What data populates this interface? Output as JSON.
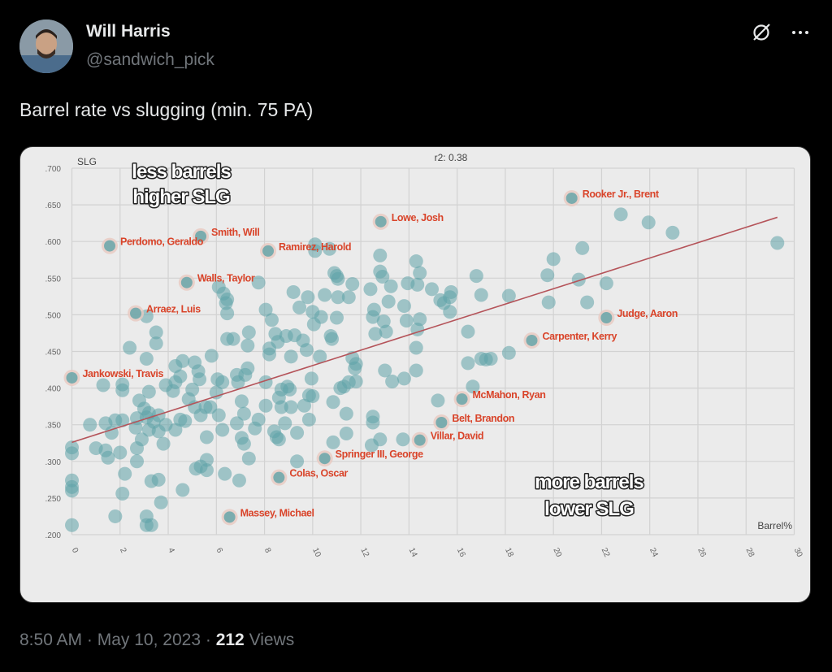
{
  "tweet": {
    "author_name": "Will Harris",
    "handle": "@sandwich_pick",
    "text": "Barrel rate vs slugging (min. 75 PA)",
    "time": "8:50 AM",
    "date": "May 10, 2023",
    "views_count": "212",
    "views_label": "Views",
    "separator": "·",
    "icons": [
      "grok-icon",
      "more-icon"
    ]
  },
  "chart_data": {
    "type": "scatter",
    "xlabel": "Barrel%",
    "ylabel": "SLG",
    "annotation_top": "r2: 0.38",
    "xlim": [
      0,
      30
    ],
    "ylim": [
      0.2,
      0.7
    ],
    "x_ticks": [
      "0",
      "2",
      "4",
      "6",
      "8",
      "10",
      "12",
      "14",
      "16",
      "18",
      "20",
      "22",
      "24",
      "26",
      "28",
      "30"
    ],
    "y_ticks": [
      ".700",
      ".650",
      ".600",
      ".550",
      ".500",
      ".450",
      ".400",
      ".350",
      ".300",
      ".250",
      ".200"
    ],
    "grid": true,
    "point_color": "#5fa3a8",
    "label_color": "#d9442a",
    "trendline": {
      "color": "#b5545a",
      "x": [
        0,
        29.3
      ],
      "y": [
        0.326,
        0.633
      ]
    },
    "callouts": [
      {
        "lines": [
          "less barrels",
          "higher SLG"
        ],
        "position": "top-left"
      },
      {
        "lines": [
          "more barrels",
          "lower SLG"
        ],
        "position": "bottom-center"
      }
    ],
    "labeled_points": [
      {
        "name": "Rooker Jr., Brent",
        "x": 20.76,
        "y": 0.659
      },
      {
        "name": "Lowe, Josh",
        "x": 12.83,
        "y": 0.627
      },
      {
        "name": "Smith, Will",
        "x": 5.35,
        "y": 0.607
      },
      {
        "name": "Perdomo, Geraldo",
        "x": 1.57,
        "y": 0.594
      },
      {
        "name": "Ramirez, Harold",
        "x": 8.15,
        "y": 0.587
      },
      {
        "name": "Walls, Taylor",
        "x": 4.77,
        "y": 0.544
      },
      {
        "name": "Arraez, Luis",
        "x": 2.65,
        "y": 0.502
      },
      {
        "name": "Jankowski, Travis",
        "x": 0.0,
        "y": 0.414
      },
      {
        "name": "Judge, Aaron",
        "x": 22.2,
        "y": 0.496
      },
      {
        "name": "Carpenter, Kerry",
        "x": 19.1,
        "y": 0.465
      },
      {
        "name": "McMahon, Ryan",
        "x": 16.2,
        "y": 0.385
      },
      {
        "name": "Belt, Brandon",
        "x": 15.35,
        "y": 0.353
      },
      {
        "name": "Villar, David",
        "x": 14.45,
        "y": 0.329
      },
      {
        "name": "Springer III, George",
        "x": 10.5,
        "y": 0.304
      },
      {
        "name": "Colas, Oscar",
        "x": 8.6,
        "y": 0.278
      },
      {
        "name": "Massey, Michael",
        "x": 6.55,
        "y": 0.224
      }
    ],
    "points": [
      [
        0,
        0.319
      ],
      [
        0,
        0.311
      ],
      [
        0,
        0.274
      ],
      [
        0,
        0.265
      ],
      [
        0,
        0.26
      ],
      [
        0,
        0.213
      ],
      [
        0.75,
        0.35
      ],
      [
        1,
        0.318
      ],
      [
        1.4,
        0.315
      ],
      [
        1.5,
        0.305
      ],
      [
        1.4,
        0.352
      ],
      [
        1.65,
        0.339
      ],
      [
        1.8,
        0.225
      ],
      [
        1.3,
        0.404
      ],
      [
        2,
        0.312
      ],
      [
        2.1,
        0.356
      ],
      [
        1.8,
        0.356
      ],
      [
        2.1,
        0.405
      ],
      [
        2.1,
        0.397
      ],
      [
        2.1,
        0.256
      ],
      [
        2.2,
        0.283
      ],
      [
        2.4,
        0.455
      ],
      [
        2.7,
        0.359
      ],
      [
        2.65,
        0.346
      ],
      [
        2.8,
        0.383
      ],
      [
        2.7,
        0.318
      ],
      [
        2.7,
        0.3
      ],
      [
        2.9,
        0.33
      ],
      [
        3.1,
        0.36
      ],
      [
        3.2,
        0.366
      ],
      [
        3.2,
        0.343
      ],
      [
        3.0,
        0.372
      ],
      [
        3.2,
        0.395
      ],
      [
        3.1,
        0.498
      ],
      [
        3.1,
        0.44
      ],
      [
        3.3,
        0.273
      ],
      [
        3.1,
        0.225
      ],
      [
        3.1,
        0.213
      ],
      [
        3.3,
        0.213
      ],
      [
        3.5,
        0.461
      ],
      [
        3.5,
        0.476
      ],
      [
        3.6,
        0.341
      ],
      [
        3.4,
        0.354
      ],
      [
        3.6,
        0.363
      ],
      [
        3.8,
        0.324
      ],
      [
        3.9,
        0.35
      ],
      [
        3.6,
        0.275
      ],
      [
        3.7,
        0.244
      ],
      [
        3.9,
        0.404
      ],
      [
        4.2,
        0.396
      ],
      [
        4.3,
        0.43
      ],
      [
        4.5,
        0.416
      ],
      [
        4.3,
        0.408
      ],
      [
        4.6,
        0.437
      ],
      [
        4.6,
        0.261
      ],
      [
        4.3,
        0.343
      ],
      [
        4.5,
        0.357
      ],
      [
        4.85,
        0.385
      ],
      [
        4.7,
        0.355
      ],
      [
        5,
        0.398
      ],
      [
        5.1,
        0.374
      ],
      [
        5.1,
        0.435
      ],
      [
        5.25,
        0.423
      ],
      [
        5.3,
        0.412
      ],
      [
        5.35,
        0.363
      ],
      [
        5.15,
        0.29
      ],
      [
        5.35,
        0.293
      ],
      [
        5.6,
        0.333
      ],
      [
        5.6,
        0.302
      ],
      [
        5.55,
        0.374
      ],
      [
        5.6,
        0.288
      ],
      [
        5.75,
        0.374
      ],
      [
        5.8,
        0.444
      ],
      [
        6,
        0.394
      ],
      [
        6.1,
        0.538
      ],
      [
        6.3,
        0.529
      ],
      [
        6.4,
        0.516
      ],
      [
        6.45,
        0.521
      ],
      [
        6.45,
        0.502
      ],
      [
        6.05,
        0.412
      ],
      [
        6.25,
        0.408
      ],
      [
        6.1,
        0.363
      ],
      [
        6.25,
        0.343
      ],
      [
        6.35,
        0.283
      ],
      [
        6.45,
        0.467
      ],
      [
        6.7,
        0.467
      ],
      [
        6.85,
        0.418
      ],
      [
        6.9,
        0.408
      ],
      [
        7.05,
        0.382
      ],
      [
        6.85,
        0.352
      ],
      [
        7.05,
        0.332
      ],
      [
        7.15,
        0.324
      ],
      [
        6.95,
        0.274
      ],
      [
        7.2,
        0.418
      ],
      [
        7.3,
        0.427
      ],
      [
        7.35,
        0.476
      ],
      [
        7.3,
        0.458
      ],
      [
        7.15,
        0.365
      ],
      [
        7.35,
        0.304
      ],
      [
        7.6,
        0.345
      ],
      [
        7.75,
        0.544
      ],
      [
        7.75,
        0.357
      ],
      [
        8.05,
        0.376
      ],
      [
        8.05,
        0.408
      ],
      [
        8.05,
        0.507
      ],
      [
        8.2,
        0.454
      ],
      [
        8.2,
        0.446
      ],
      [
        8.3,
        0.493
      ],
      [
        8.45,
        0.474
      ],
      [
        8.55,
        0.463
      ],
      [
        8.7,
        0.398
      ],
      [
        8.6,
        0.387
      ],
      [
        8.7,
        0.374
      ],
      [
        8.6,
        0.33
      ],
      [
        8.5,
        0.333
      ],
      [
        8.4,
        0.341
      ],
      [
        8.85,
        0.352
      ],
      [
        9.1,
        0.374
      ],
      [
        8.95,
        0.402
      ],
      [
        9.05,
        0.398
      ],
      [
        8.9,
        0.471
      ],
      [
        9.1,
        0.443
      ],
      [
        9.2,
        0.531
      ],
      [
        9.25,
        0.472
      ],
      [
        9.45,
        0.51
      ],
      [
        9.35,
        0.339
      ],
      [
        9.35,
        0.3
      ],
      [
        9.6,
        0.465
      ],
      [
        9.75,
        0.452
      ],
      [
        9.65,
        0.376
      ],
      [
        9.8,
        0.524
      ],
      [
        9.85,
        0.39
      ],
      [
        10,
        0.389
      ],
      [
        9.85,
        0.357
      ],
      [
        9.95,
        0.413
      ],
      [
        10,
        0.504
      ],
      [
        10.05,
        0.487
      ],
      [
        10.1,
        0.596
      ],
      [
        10.1,
        0.587
      ],
      [
        10.3,
        0.443
      ],
      [
        10.35,
        0.497
      ],
      [
        10.5,
        0.527
      ],
      [
        10.7,
        0.59
      ],
      [
        10.75,
        0.471
      ],
      [
        10.8,
        0.467
      ],
      [
        10.85,
        0.381
      ],
      [
        10.85,
        0.326
      ],
      [
        10.9,
        0.557
      ],
      [
        11,
        0.553
      ],
      [
        11.05,
        0.549
      ],
      [
        11.05,
        0.524
      ],
      [
        11,
        0.496
      ],
      [
        11.15,
        0.4
      ],
      [
        11.3,
        0.402
      ],
      [
        11.4,
        0.365
      ],
      [
        11.4,
        0.338
      ],
      [
        11.5,
        0.408
      ],
      [
        11.65,
        0.542
      ],
      [
        11.5,
        0.524
      ],
      [
        11.65,
        0.441
      ],
      [
        11.8,
        0.433
      ],
      [
        11.8,
        0.409
      ],
      [
        11.75,
        0.427
      ],
      [
        12.5,
        0.361
      ],
      [
        12.45,
        0.322
      ],
      [
        12.5,
        0.353
      ],
      [
        12.4,
        0.535
      ],
      [
        12.55,
        0.507
      ],
      [
        12.5,
        0.497
      ],
      [
        12.6,
        0.474
      ],
      [
        12.8,
        0.33
      ],
      [
        12.8,
        0.581
      ],
      [
        12.8,
        0.559
      ],
      [
        12.9,
        0.552
      ],
      [
        12.95,
        0.491
      ],
      [
        13.05,
        0.477
      ],
      [
        13,
        0.424
      ],
      [
        13.3,
        0.409
      ],
      [
        13.15,
        0.518
      ],
      [
        13.25,
        0.539
      ],
      [
        13.75,
        0.33
      ],
      [
        13.8,
        0.413
      ],
      [
        13.8,
        0.512
      ],
      [
        13.9,
        0.492
      ],
      [
        13.95,
        0.543
      ],
      [
        14.3,
        0.573
      ],
      [
        14.45,
        0.557
      ],
      [
        14.35,
        0.541
      ],
      [
        14.35,
        0.48
      ],
      [
        14.3,
        0.455
      ],
      [
        14.3,
        0.424
      ],
      [
        14.45,
        0.494
      ],
      [
        14.95,
        0.535
      ],
      [
        15.3,
        0.52
      ],
      [
        15.45,
        0.516
      ],
      [
        15.7,
        0.524
      ],
      [
        15.75,
        0.531
      ],
      [
        15.2,
        0.383
      ],
      [
        15.7,
        0.504
      ],
      [
        16.45,
        0.477
      ],
      [
        16.45,
        0.434
      ],
      [
        16.65,
        0.402
      ],
      [
        16.8,
        0.553
      ],
      [
        17,
        0.527
      ],
      [
        17,
        0.44
      ],
      [
        17.2,
        0.439
      ],
      [
        17.4,
        0.44
      ],
      [
        18.15,
        0.526
      ],
      [
        18.15,
        0.448
      ],
      [
        19.8,
        0.517
      ],
      [
        19.75,
        0.554
      ],
      [
        20,
        0.576
      ],
      [
        21.05,
        0.548
      ],
      [
        21.2,
        0.591
      ],
      [
        21.4,
        0.517
      ],
      [
        22.2,
        0.543
      ],
      [
        22.8,
        0.637
      ],
      [
        23.95,
        0.626
      ],
      [
        24.95,
        0.612
      ],
      [
        29.3,
        0.598
      ]
    ]
  }
}
